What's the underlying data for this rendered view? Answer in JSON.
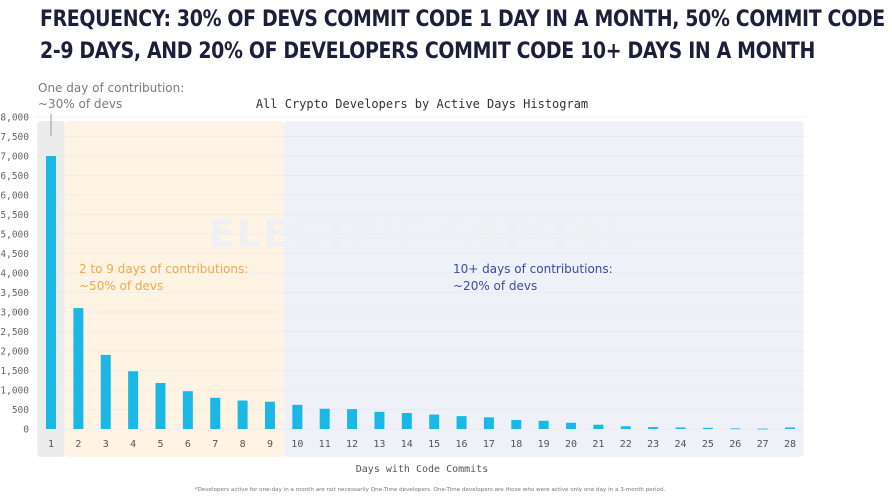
{
  "page": {
    "headline_line1": "FREQUENCY: 30% OF DEVS COMMIT CODE 1 DAY IN A MONTH, 50% COMMIT CODE",
    "headline_line2": "2-9 DAYS, AND 20% OF DEVELOPERS COMMIT CODE 10+ DAYS IN A MONTH"
  },
  "chart_data": {
    "type": "bar",
    "title": "All Crypto Developers by Active Days Histogram",
    "xlabel": "Days with Code Commits",
    "ylabel": "",
    "ylim": [
      0,
      8000
    ],
    "yticks": [
      0,
      500,
      1000,
      1500,
      2000,
      2500,
      3000,
      3500,
      4000,
      4500,
      5000,
      5500,
      6000,
      6500,
      7000,
      7500,
      8000
    ],
    "ytick_labels": [
      "0",
      "500",
      "1,000",
      "1,500",
      "2,000",
      "2,500",
      "3,000",
      "3,500",
      "4,000",
      "4,500",
      "5,000",
      "5,500",
      "6,000",
      "6,500",
      "7,000",
      "7,500",
      "8,000"
    ],
    "categories": [
      "1",
      "2",
      "3",
      "4",
      "5",
      "6",
      "7",
      "8",
      "9",
      "10",
      "11",
      "12",
      "13",
      "14",
      "15",
      "16",
      "17",
      "18",
      "19",
      "20",
      "21",
      "22",
      "23",
      "24",
      "25",
      "26",
      "27",
      "28"
    ],
    "values": [
      7000,
      3100,
      1900,
      1480,
      1180,
      970,
      800,
      730,
      700,
      620,
      520,
      510,
      440,
      410,
      370,
      330,
      300,
      230,
      210,
      160,
      110,
      70,
      50,
      40,
      30,
      15,
      10,
      40
    ],
    "bar_color": "#1bb8e6",
    "annotations": [
      {
        "line1": "One day of contribution:",
        "line2": "~30% of devs",
        "color": "#7a7a7a"
      },
      {
        "line1": "2 to 9 days of contributions:",
        "line2": "~50% of devs",
        "color": "#f3a84a"
      },
      {
        "line1": "10+ days of contributions:",
        "line2": "~20% of devs",
        "color": "#3d4aa8"
      }
    ],
    "regions": [
      {
        "from": "1",
        "to": "1",
        "color": "#ececec"
      },
      {
        "from": "2",
        "to": "9",
        "color": "#fff4e4"
      },
      {
        "from": "10",
        "to": "28",
        "color": "#eef1f8"
      }
    ],
    "watermark": "ELECTRIC CAPITAL",
    "footnote": "*Developers active for one-day in a month are not necessarily One-Time developers. One-Time developers are those who were active only one day in a 3-month period.",
    "grid": true,
    "legend": "none"
  }
}
